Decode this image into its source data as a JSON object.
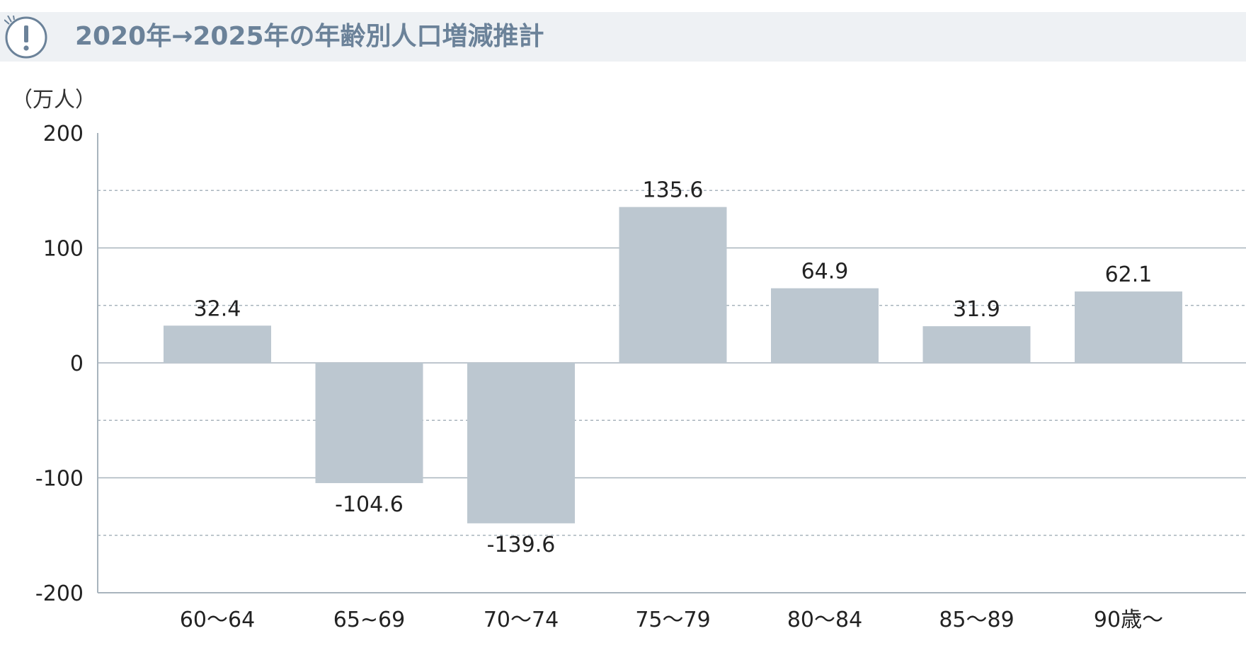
{
  "header": {
    "title": "2020年→2025年の年齢別人口増減推計",
    "icon": "exclamation-icon",
    "icon_color": "#6b8299"
  },
  "chart_data": {
    "type": "bar",
    "title": "2020年→2025年の年齢別人口増減推計",
    "ylabel": "（万人）",
    "xlabel": "",
    "categories": [
      "60〜64",
      "65~69",
      "70〜74",
      "75〜79",
      "80〜84",
      "85〜89",
      "90歳〜"
    ],
    "values": [
      32.4,
      -104.6,
      -139.6,
      135.6,
      64.9,
      31.9,
      62.1
    ],
    "data_labels": [
      "32.4",
      "-104.6",
      "-139.6",
      "135.6",
      "64.9",
      "31.9",
      "62.1"
    ],
    "ylim": [
      -200,
      200
    ],
    "yticks": [
      200,
      100,
      0,
      -100,
      -200
    ],
    "ytick_labels": [
      "200",
      "100",
      "0",
      "-100",
      "-200"
    ],
    "minor_gridlines": [
      150,
      50,
      -50,
      -150
    ],
    "grid": true,
    "bar_color": "#bcc7d0",
    "axis_color": "#a8b4bd"
  }
}
